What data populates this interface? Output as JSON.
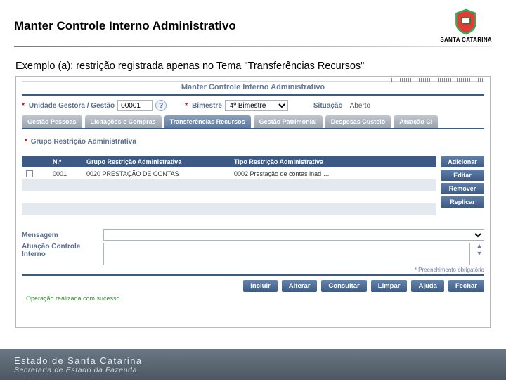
{
  "slide": {
    "title": "Manter Controle Interno Administrativo",
    "subtitle_prefix": "Exemplo (a): restrição registrada ",
    "subtitle_underlined": "apenas",
    "subtitle_suffix": " no Tema \"Transferências Recursos\""
  },
  "logo": {
    "text": "SANTA CATARINA"
  },
  "app": {
    "title": "Manter Controle Interno Administrativo",
    "form": {
      "unidade_label": "Unidade Gestora / Gestão",
      "unidade_value": "00001",
      "bimestre_label": "Bimestre",
      "bimestre_value": "4º Bimestre",
      "situacao_label": "Situação",
      "situacao_value": "Aberto"
    },
    "tabs": [
      "Gestão Pessoas",
      "Licitações e Compras",
      "Transferências Recursos",
      "Gestão Patrimonial",
      "Despesas Custeio",
      "Atuação CI"
    ],
    "active_tab": 2,
    "grupo_label": "Grupo Restrição Administrativa",
    "table": {
      "headers": {
        "n": "N.º",
        "grupo": "Grupo Restrição Administrativa",
        "tipo": "Tipo Restrição Administrativa"
      },
      "row": {
        "n": "0001",
        "grupo": "0020 PRESTAÇÃO DE CONTAS",
        "tipo": "0002 Prestação de contas inad …"
      }
    },
    "side_buttons": [
      "Adicionar",
      "Editar",
      "Remover",
      "Replicar"
    ],
    "lower": {
      "mensagem_label": "Mensagem",
      "atuacao_label": "Atuação Controle Interno"
    },
    "required_note": "* Preenchimento obrigatório",
    "bottom_buttons": [
      "Incluir",
      "Alterar",
      "Consultar",
      "Limpar",
      "Ajuda",
      "Fechar"
    ],
    "status": "Operação realizada com sucesso."
  },
  "footer": {
    "line1": "Estado de Santa Catarina",
    "line2": "Secretaria de Estado da Fazenda"
  }
}
